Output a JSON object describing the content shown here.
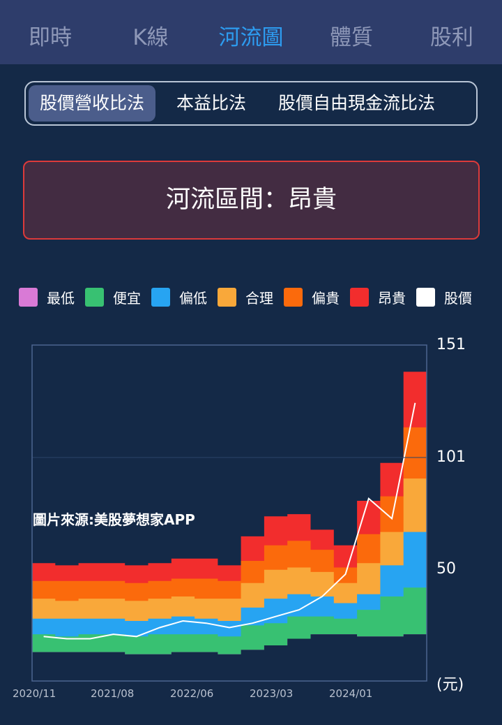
{
  "tabs": [
    {
      "label": "即時",
      "active": false
    },
    {
      "label": "K線",
      "active": false
    },
    {
      "label": "河流圖",
      "active": true
    },
    {
      "label": "體質",
      "active": false
    },
    {
      "label": "股利",
      "active": false
    }
  ],
  "methods": [
    {
      "label": "股價營收比法",
      "active": true
    },
    {
      "label": "本益比法",
      "active": false
    },
    {
      "label": "股價自由現金流比法",
      "active": false
    }
  ],
  "zone": {
    "text": "河流區間：昂貴"
  },
  "legend": [
    {
      "label": "最低",
      "color": "#d97ad6"
    },
    {
      "label": "便宜",
      "color": "#38c172"
    },
    {
      "label": "偏低",
      "color": "#27a4f2"
    },
    {
      "label": "合理",
      "color": "#f9a83a"
    },
    {
      "label": "偏貴",
      "color": "#fb6a0c"
    },
    {
      "label": "昂貴",
      "color": "#f22d2d"
    },
    {
      "label": "股價",
      "color": "#ffffff"
    }
  ],
  "watermark": "圖片來源:美股夢想家APP",
  "chart_data": {
    "type": "area",
    "x_ticks": [
      "2020/11",
      "2021/08",
      "2022/06",
      "2023/03",
      "2024/01"
    ],
    "y_ticks": [
      "151",
      "101",
      "50"
    ],
    "y_unit": "(元)",
    "ylim": [
      0,
      151
    ],
    "x": [
      "2020/11",
      "2021/02",
      "2021/05",
      "2021/08",
      "2021/11",
      "2022/02",
      "2022/05",
      "2022/08",
      "2022/11",
      "2023/02",
      "2023/05",
      "2023/08",
      "2023/11",
      "2024/02",
      "2024/05",
      "2024/08",
      "2024/11"
    ],
    "bands": {
      "最低": [
        13,
        13,
        13,
        13,
        12,
        12,
        13,
        13,
        12,
        14,
        16,
        19,
        21,
        21,
        20,
        20,
        21
      ],
      "便宜": [
        21,
        20,
        21,
        21,
        20,
        21,
        21,
        21,
        20,
        25,
        26,
        29,
        29,
        28,
        32,
        38,
        42
      ],
      "偏低": [
        28,
        28,
        28,
        28,
        27,
        28,
        29,
        28,
        27,
        33,
        37,
        39,
        38,
        35,
        39,
        52,
        67
      ],
      "合理": [
        37,
        36,
        37,
        37,
        36,
        37,
        38,
        37,
        37,
        44,
        50,
        51,
        49,
        44,
        53,
        67,
        91
      ],
      "偏貴": [
        45,
        45,
        45,
        45,
        44,
        45,
        46,
        46,
        45,
        54,
        61,
        63,
        59,
        51,
        66,
        83,
        114
      ],
      "昂貴": [
        53,
        52,
        53,
        53,
        52,
        53,
        55,
        55,
        52,
        65,
        74,
        75,
        68,
        61,
        81,
        98,
        139
      ]
    },
    "price": [
      20,
      19,
      19,
      21,
      20,
      24,
      27,
      26,
      24,
      26,
      29,
      32,
      38,
      48,
      82,
      73,
      125
    ]
  }
}
